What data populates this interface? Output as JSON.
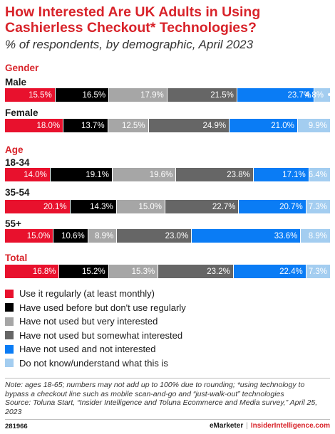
{
  "header": {
    "title": "How Interested Are UK Adults in Using Cashierless Checkout* Technologies?",
    "subtitle": "% of respondents, by demographic, April 2023"
  },
  "colors": {
    "accent": "#d8232a",
    "series": [
      "#e8112d",
      "#000000",
      "#a6a6a6",
      "#666666",
      "#0a7cf5",
      "#a3cdf0"
    ],
    "label_text": [
      "#ffffff",
      "#ffffff",
      "#ffffff",
      "#ffffff",
      "#ffffff",
      "#ffffff"
    ]
  },
  "chart_data": {
    "type": "bar",
    "stacked": true,
    "orientation": "horizontal",
    "value_unit": "%",
    "series_names": [
      "Use it regularly (at least monthly)",
      "Have used before but don't use regularly",
      "Have not used but very interested",
      "Have not used but somewhat interested",
      "Have not used and not interested",
      "Do not know/understand what this is"
    ],
    "sections": [
      {
        "name": "Gender",
        "groups": [
          {
            "label": "Male",
            "values": [
              15.5,
              16.5,
              17.9,
              21.5,
              23.7,
              4.8
            ],
            "labels": [
              "15.5%",
              "16.5%",
              "17.9%",
              "21.5%",
              "23.7%",
              "4.8%"
            ],
            "bullet": "•"
          },
          {
            "label": "Female",
            "values": [
              18.0,
              13.7,
              12.5,
              24.9,
              21.0,
              9.9
            ],
            "labels": [
              "18.0%",
              "13.7%",
              "12.5%",
              "24.9%",
              "21.0%",
              "9.9%"
            ]
          }
        ]
      },
      {
        "name": "Age",
        "groups": [
          {
            "label": "18-34",
            "values": [
              14.0,
              19.1,
              19.6,
              23.8,
              17.1,
              6.4
            ],
            "labels": [
              "14.0%",
              "19.1%",
              "19.6%",
              "23.8%",
              "17.1%",
              "6.4%"
            ]
          },
          {
            "label": "35-54",
            "values": [
              20.1,
              14.3,
              15.0,
              22.7,
              20.7,
              7.3
            ],
            "labels": [
              "20.1%",
              "14.3%",
              "15.0%",
              "22.7%",
              "20.7%",
              "7.3%"
            ]
          },
          {
            "label": "55+",
            "values": [
              15.0,
              10.6,
              8.9,
              23.0,
              33.6,
              8.9
            ],
            "labels": [
              "15.0%",
              "10.6%",
              "8.9%",
              "23.0%",
              "33.6%",
              "8.9%"
            ]
          }
        ]
      },
      {
        "name": "Total",
        "groups": [
          {
            "label": "",
            "values": [
              16.8,
              15.2,
              15.3,
              23.2,
              22.4,
              7.3
            ],
            "labels": [
              "16.8%",
              "15.2%",
              "15.3%",
              "23.2%",
              "22.4%",
              "7.3%"
            ]
          }
        ]
      }
    ]
  },
  "footnote": {
    "note": "Note: ages 18-65; numbers may not add up to 100% due to rounding; *using technology to bypass a checkout line such as mobile scan-and-go and “just-walk-out” technologies",
    "source": "Source: Toluna Start, “Insider Intelligence and Toluna Ecommerce and Media survey,” April 25, 2023"
  },
  "footer": {
    "chart_id": "281966",
    "brand": "eMarketer",
    "separator": "|",
    "site": "InsiderIntelligence.com"
  }
}
